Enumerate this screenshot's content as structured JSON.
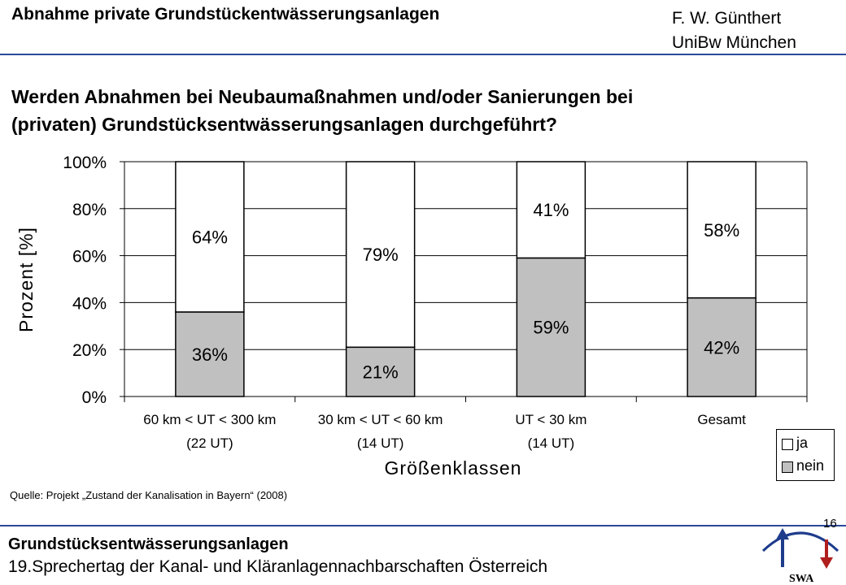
{
  "header": {
    "title": "Abnahme private Grundstückentwässerungsanlagen",
    "author_line1": "F. W. Günthert",
    "author_line2": "UniBw München"
  },
  "question": {
    "line1": "Werden Abnahmen bei Neubaumaßnahmen und/oder Sanierungen bei",
    "line2": "(privaten) Grundstücksentwässerungsanlagen durchgeführt?"
  },
  "chart_data": {
    "type": "bar",
    "stacked": true,
    "ylabel": "Prozent [%]",
    "xlabel": "Größenklassen",
    "ylim": [
      0,
      100
    ],
    "yticks": [
      "0%",
      "20%",
      "40%",
      "60%",
      "80%",
      "100%"
    ],
    "categories": [
      {
        "line1": "60 km < UT < 300 km",
        "line2": "(22 UT)"
      },
      {
        "line1": "30 km < UT < 60 km",
        "line2": "(14 UT)"
      },
      {
        "line1": "UT < 30 km",
        "line2": "(14 UT)"
      },
      {
        "line1": "Gesamt",
        "line2": ""
      }
    ],
    "series": [
      {
        "name": "nein",
        "color": "#c0c0c0",
        "values": [
          36,
          21,
          59,
          42
        ],
        "labels": [
          "36%",
          "21%",
          "59%",
          "42%"
        ]
      },
      {
        "name": "ja",
        "color": "#ffffff",
        "values": [
          64,
          79,
          41,
          58
        ],
        "labels": [
          "64%",
          "79%",
          "41%",
          "58%"
        ]
      }
    ],
    "grid": true,
    "legend_position": "bottom-right"
  },
  "legend": {
    "items": [
      {
        "label": "ja",
        "color": "#ffffff"
      },
      {
        "label": "nein",
        "color": "#c0c0c0"
      }
    ]
  },
  "source": "Quelle: Projekt „Zustand der Kanalisation in Bayern“ (2008)",
  "footer": {
    "line1": "Grundstücksentwässerungsanlagen",
    "line2": "19.Sprechertag der Kanal- und Kläranlagennachbarschaften Österreich",
    "page_number": "16",
    "logo_text": "SWA"
  },
  "colors": {
    "accent_rule": "#2a4a9a",
    "logo_blue": "#1e3c8c",
    "logo_red": "#b01e1e"
  }
}
